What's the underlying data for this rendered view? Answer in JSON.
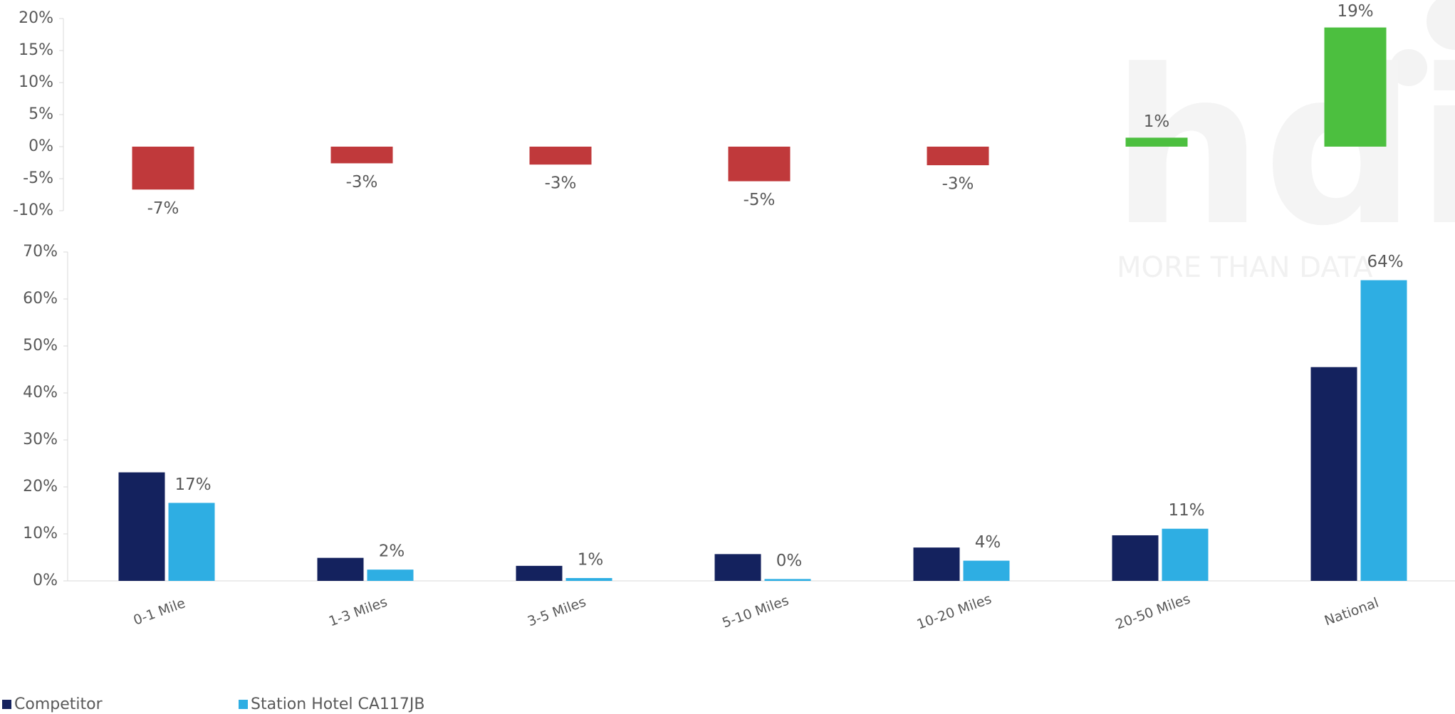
{
  "watermark": {
    "logo": "hdi",
    "tagline": "MORE THAN DATA"
  },
  "chart_data": [
    {
      "type": "diverging-bar",
      "values": [
        -6.7,
        -2.6,
        -2.8,
        -5.4,
        -2.9,
        1.4,
        18.6
      ],
      "value_labels": [
        "-7%",
        "-3%",
        "-3%",
        "-5%",
        "-3%",
        "1%",
        "19%"
      ],
      "positive_color": "#4cbf3f",
      "negative_color": "#c0393b",
      "ylim": [
        -10,
        20
      ],
      "yticks": [
        {
          "value": 20,
          "label": "20%"
        },
        {
          "value": 15,
          "label": "15%"
        },
        {
          "value": 10,
          "label": "10%"
        },
        {
          "value": 5,
          "label": "5%"
        },
        {
          "value": 0,
          "label": "0%"
        },
        {
          "value": -5,
          "label": "-5%"
        },
        {
          "value": -10,
          "label": "-10%"
        }
      ]
    },
    {
      "type": "grouped-bar",
      "categories": [
        "0-1 Mile",
        "1-3 Miles",
        "3-5 Miles",
        "5-10 Miles",
        "10-20 Miles",
        "20-50 Miles",
        "National"
      ],
      "series": [
        {
          "name": "Competitor",
          "color": "#14225e",
          "values": [
            23.1,
            4.9,
            3.2,
            5.7,
            7.1,
            9.7,
            45.5
          ]
        },
        {
          "name": "Station Hotel CA117JB",
          "color": "#2eaee3",
          "values": [
            16.6,
            2.4,
            0.6,
            0.4,
            4.3,
            11.1,
            64.0
          ],
          "value_labels": [
            "17%",
            "2%",
            "1%",
            "0%",
            "4%",
            "11%",
            "64%"
          ]
        }
      ],
      "ylim": [
        0,
        70
      ],
      "yticks": [
        {
          "value": 0,
          "label": "0%"
        },
        {
          "value": 10,
          "label": "10%"
        },
        {
          "value": 20,
          "label": "20%"
        },
        {
          "value": 30,
          "label": "30%"
        },
        {
          "value": 40,
          "label": "40%"
        },
        {
          "value": 50,
          "label": "50%"
        },
        {
          "value": 60,
          "label": "60%"
        },
        {
          "value": 70,
          "label": "70%"
        }
      ],
      "legend": "bottom-left"
    }
  ]
}
